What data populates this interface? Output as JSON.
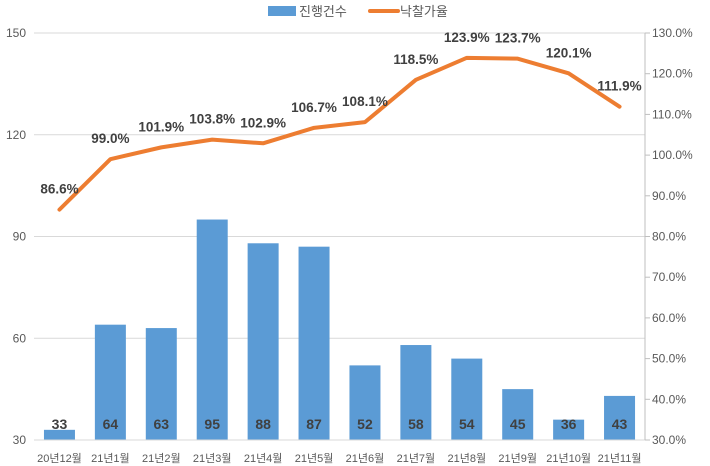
{
  "chart_data": {
    "type": "bar+line",
    "categories": [
      "20년12월",
      "21년1월",
      "21년2월",
      "21년3월",
      "21년4월",
      "21년5월",
      "21년6월",
      "21년7월",
      "21년8월",
      "21년9월",
      "21년10월",
      "21년11월"
    ],
    "series": [
      {
        "name": "진행건수",
        "type": "bar",
        "axis": "left",
        "color": "#5B9BD5",
        "values": [
          33,
          64,
          63,
          95,
          88,
          87,
          52,
          58,
          54,
          45,
          36,
          43
        ]
      },
      {
        "name": "낙찰가율",
        "type": "line",
        "axis": "right",
        "color": "#ED7D31",
        "values": [
          86.6,
          99.0,
          101.9,
          103.8,
          102.9,
          106.7,
          108.1,
          118.5,
          123.9,
          123.7,
          120.1,
          111.9
        ]
      }
    ],
    "y_left": {
      "range": [
        30,
        150
      ],
      "ticks": [
        30,
        60,
        90,
        120,
        150
      ]
    },
    "y_right": {
      "range": [
        30,
        130
      ],
      "ticks": [
        "30.0%",
        "40.0%",
        "50.0%",
        "60.0%",
        "70.0%",
        "80.0%",
        "90.0%",
        "100.0%",
        "110.0%",
        "120.0%",
        "130.0%"
      ]
    },
    "grid": true,
    "legend": "top-center",
    "title": "",
    "xlabel": "",
    "ylabel": ""
  }
}
